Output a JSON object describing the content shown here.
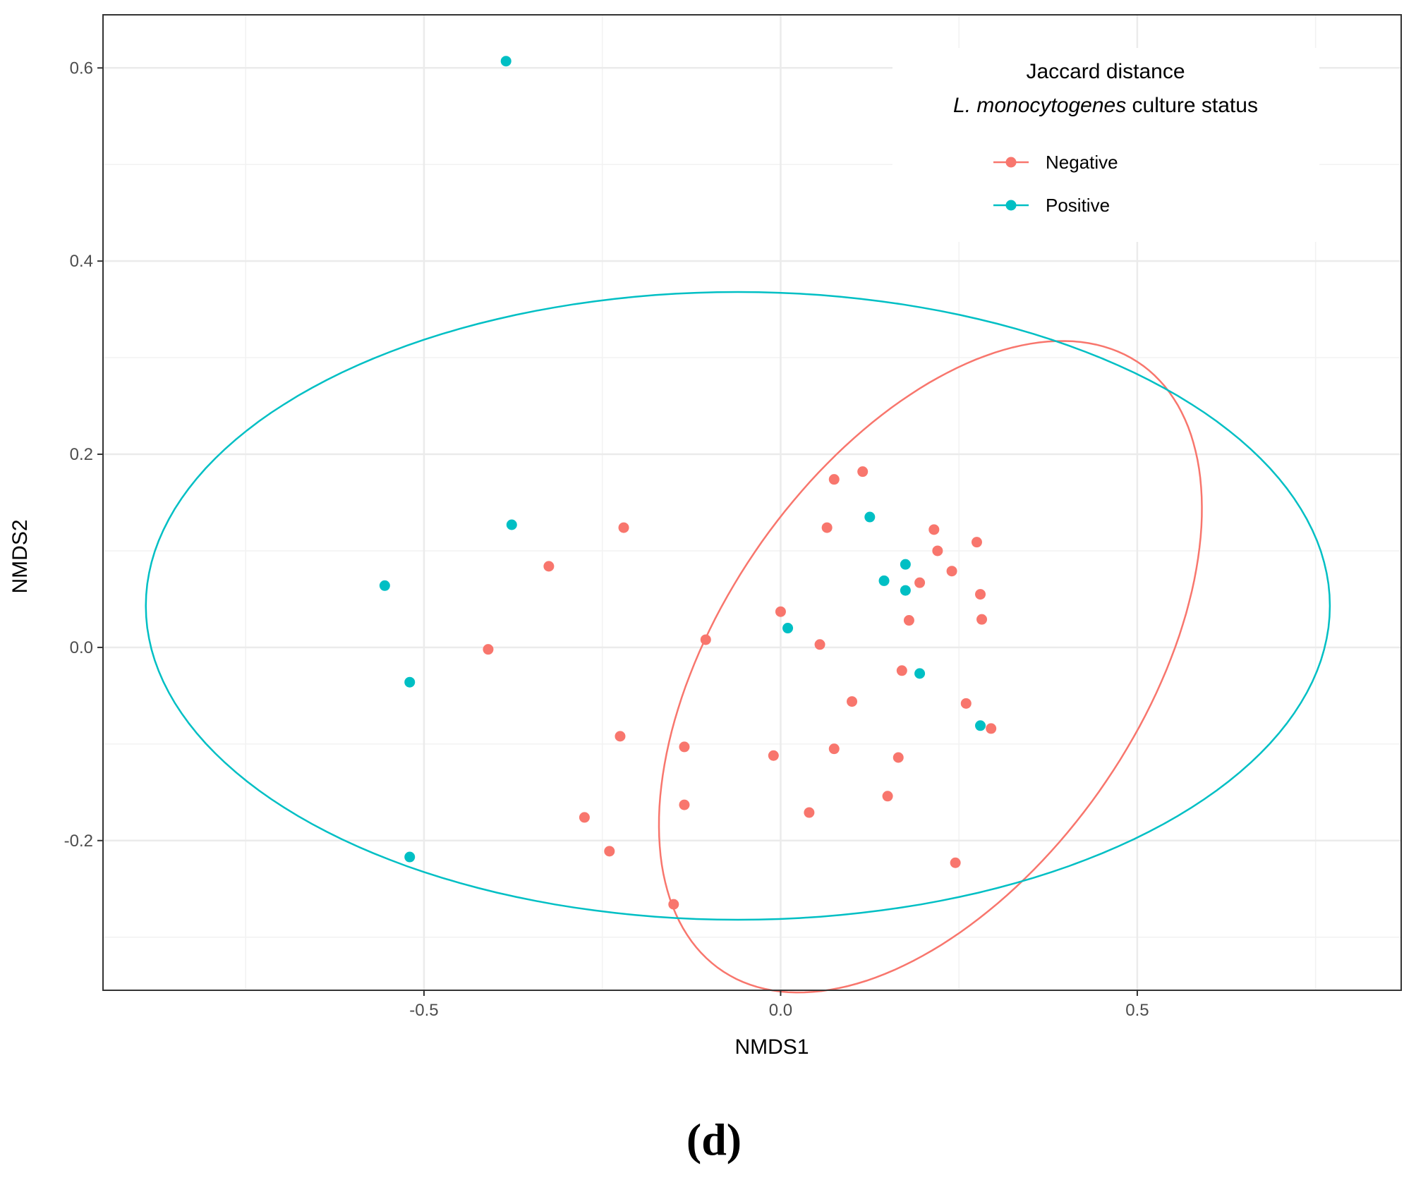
{
  "chart_data": {
    "type": "scatter",
    "xlabel": "NMDS1",
    "ylabel": "NMDS2",
    "xlim": [
      -0.95,
      0.87
    ],
    "ylim": [
      -0.355,
      0.655
    ],
    "x_ticks": [
      -0.5,
      0.0,
      0.5
    ],
    "x_tick_labels": [
      "-0.5",
      "0.0",
      "0.5"
    ],
    "y_ticks": [
      -0.2,
      0.0,
      0.2,
      0.4,
      0.6
    ],
    "y_tick_labels": [
      "-0.2",
      "0.0",
      "0.2",
      "0.4",
      "0.6"
    ],
    "grid": true,
    "legend": {
      "title_line1": "Jaccard distance",
      "title_line2_italic": "L. monocytogenes",
      "title_line2_rest": " culture status",
      "position": "top-right"
    },
    "panel_label": "(d)",
    "series": [
      {
        "name": "Negative",
        "color": "#F8766D",
        "points": [
          [
            -0.41,
            -0.002
          ],
          [
            -0.325,
            0.084
          ],
          [
            -0.22,
            0.124
          ],
          [
            -0.225,
            -0.092
          ],
          [
            -0.275,
            -0.176
          ],
          [
            -0.24,
            -0.211
          ],
          [
            -0.15,
            -0.266
          ],
          [
            -0.135,
            -0.103
          ],
          [
            -0.135,
            -0.163
          ],
          [
            -0.105,
            0.008
          ],
          [
            -0.01,
            -0.112
          ],
          [
            0.0,
            0.037
          ],
          [
            0.04,
            -0.171
          ],
          [
            0.055,
            0.003
          ],
          [
            0.065,
            0.124
          ],
          [
            0.075,
            0.174
          ],
          [
            0.075,
            -0.105
          ],
          [
            0.1,
            -0.056
          ],
          [
            0.115,
            0.182
          ],
          [
            0.15,
            -0.154
          ],
          [
            0.165,
            -0.114
          ],
          [
            0.17,
            -0.024
          ],
          [
            0.18,
            0.028
          ],
          [
            0.195,
            0.067
          ],
          [
            0.215,
            0.122
          ],
          [
            0.22,
            0.1
          ],
          [
            0.24,
            0.079
          ],
          [
            0.245,
            -0.223
          ],
          [
            0.26,
            -0.058
          ],
          [
            0.275,
            0.109
          ],
          [
            0.28,
            0.055
          ],
          [
            0.282,
            0.029
          ],
          [
            0.295,
            -0.084
          ]
        ],
        "ellipse": {
          "cx": 0.21,
          "cy": -0.02,
          "rx": 0.44,
          "ry": 0.255,
          "rotation_deg": 38
        }
      },
      {
        "name": "Positive",
        "color": "#00BFC4",
        "points": [
          [
            -0.385,
            0.607
          ],
          [
            -0.377,
            0.127
          ],
          [
            -0.555,
            0.064
          ],
          [
            -0.52,
            -0.036
          ],
          [
            -0.52,
            -0.217
          ],
          [
            0.01,
            0.02
          ],
          [
            0.125,
            0.135
          ],
          [
            0.145,
            0.069
          ],
          [
            0.175,
            0.086
          ],
          [
            0.175,
            0.059
          ],
          [
            0.195,
            -0.027
          ],
          [
            0.28,
            -0.081
          ]
        ],
        "ellipse": {
          "cx": -0.06,
          "cy": 0.043,
          "rx": 0.83,
          "ry": 0.325,
          "rotation_deg": 0
        }
      }
    ]
  }
}
